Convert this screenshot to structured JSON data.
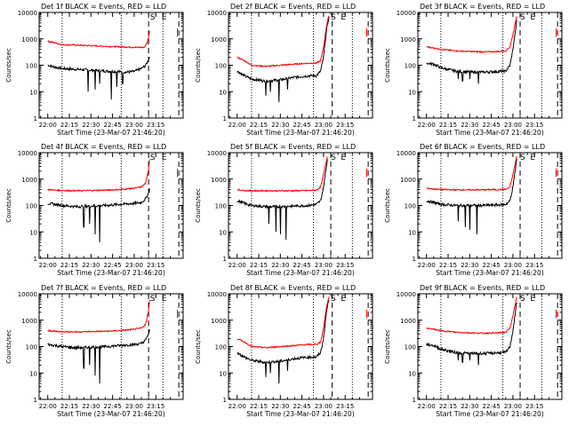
{
  "figure": {
    "xlabel": "Start Time (23-Mar-07 21:46:20)",
    "ylabel": "Counts/sec",
    "xticks": [
      "22:00",
      "22:15",
      "22:30",
      "22:45",
      "23:00",
      "23:15"
    ],
    "yticks": [
      "1",
      "10",
      "100",
      "1000",
      "10000"
    ],
    "marker_S": "S",
    "marker_E": "E",
    "colors": {
      "events": "#000000",
      "lld": "#ff0000",
      "axes": "#000000"
    }
  },
  "chart_data": [
    {
      "type": "line",
      "title": "Det 1f BLACK = Events, RED = LLD",
      "xlim_min": [
        -6,
        94
      ],
      "ylim_log10": [
        0,
        4
      ],
      "series": [
        {
          "name": "Events",
          "color": "#000000",
          "x_min": [
            0,
            5,
            10,
            20,
            30,
            40,
            55,
            60,
            65,
            68,
            70,
            71
          ],
          "y": [
            100,
            85,
            75,
            70,
            65,
            60,
            55,
            58,
            75,
            100,
            160,
            250
          ],
          "dips": [
            [
              28,
              10
            ],
            [
              33,
              12
            ],
            [
              36,
              20
            ],
            [
              44,
              5
            ],
            [
              48,
              15
            ],
            [
              52,
              20
            ]
          ]
        },
        {
          "name": "LLD",
          "color": "#ff0000",
          "x_min": [
            0,
            5,
            10,
            20,
            30,
            40,
            50,
            60,
            65,
            67,
            69,
            70,
            71
          ],
          "y": [
            800,
            700,
            600,
            580,
            550,
            520,
            500,
            480,
            470,
            480,
            700,
            1200,
            2500
          ]
        }
      ],
      "vlines_dotted_min": [
        10,
        51,
        80
      ],
      "vlines_dashed_min": [
        70,
        91
      ],
      "S_at_min": 71,
      "E_at_min": 79
    },
    {
      "type": "line",
      "title": "Det 2f BLACK = Events, RED = LLD",
      "xlim_min": [
        -6,
        94
      ],
      "ylim_log10": [
        0,
        4
      ],
      "series": [
        {
          "name": "Events",
          "color": "#000000",
          "x_min": [
            0,
            5,
            10,
            20,
            30,
            40,
            50,
            55,
            58,
            60,
            62,
            64
          ],
          "y": [
            60,
            40,
            30,
            25,
            28,
            35,
            40,
            40,
            60,
            200,
            2000,
            8000
          ],
          "dips": [
            [
              20,
              7
            ],
            [
              23,
              10
            ],
            [
              29,
              4
            ],
            [
              35,
              12
            ]
          ]
        },
        {
          "name": "LLD",
          "color": "#ff0000",
          "x_min": [
            0,
            5,
            10,
            20,
            30,
            40,
            50,
            55,
            58,
            60,
            62,
            64
          ],
          "y": [
            200,
            150,
            100,
            90,
            100,
            110,
            120,
            120,
            150,
            500,
            3000,
            9000
          ]
        }
      ],
      "vlines_dotted_min": [
        10,
        53,
        80
      ],
      "vlines_dashed_min": [
        66,
        91
      ],
      "S_at_min": 65,
      "E_at_min": 72
    },
    {
      "type": "line",
      "title": "Det 3f BLACK = Events, RED = LLD",
      "xlim_min": [
        -6,
        94
      ],
      "ylim_log10": [
        0,
        4
      ],
      "series": [
        {
          "name": "Events",
          "color": "#000000",
          "x_min": [
            0,
            5,
            10,
            20,
            30,
            40,
            50,
            55,
            58,
            60,
            62,
            63
          ],
          "y": [
            120,
            110,
            80,
            60,
            55,
            55,
            58,
            60,
            100,
            400,
            2500,
            7000
          ],
          "dips": [
            [
              22,
              30
            ],
            [
              25,
              25
            ],
            [
              30,
              30
            ],
            [
              36,
              20
            ]
          ]
        },
        {
          "name": "LLD",
          "color": "#ff0000",
          "x_min": [
            0,
            5,
            10,
            20,
            30,
            40,
            50,
            55,
            58,
            60,
            62,
            63
          ],
          "y": [
            500,
            450,
            400,
            350,
            330,
            320,
            330,
            350,
            500,
            1500,
            5000,
            9000
          ]
        }
      ],
      "vlines_dotted_min": [
        10,
        53,
        80
      ],
      "vlines_dashed_min": [
        65,
        91
      ],
      "S_at_min": 65,
      "E_at_min": 72
    },
    {
      "type": "line",
      "title": "Det 4f BLACK = Events, RED = LLD",
      "xlim_min": [
        -6,
        94
      ],
      "ylim_log10": [
        0,
        4
      ],
      "series": [
        {
          "name": "Events",
          "color": "#000000",
          "x_min": [
            0,
            5,
            10,
            20,
            30,
            40,
            50,
            60,
            65,
            68,
            70,
            71
          ],
          "y": [
            120,
            110,
            100,
            90,
            95,
            100,
            110,
            120,
            130,
            180,
            300,
            500
          ],
          "dips": [
            [
              25,
              15
            ],
            [
              29,
              20
            ],
            [
              33,
              8
            ],
            [
              36,
              4
            ]
          ]
        },
        {
          "name": "LLD",
          "color": "#ff0000",
          "x_min": [
            0,
            5,
            10,
            20,
            30,
            40,
            50,
            60,
            65,
            68,
            70,
            71
          ],
          "y": [
            400,
            380,
            370,
            360,
            370,
            380,
            400,
            450,
            500,
            700,
            2500,
            8000
          ]
        }
      ],
      "vlines_dotted_min": [
        10,
        51,
        80
      ],
      "vlines_dashed_min": [
        70,
        91
      ],
      "S_at_min": 71,
      "E_at_min": 79
    },
    {
      "type": "line",
      "title": "Det 5f BLACK = Events, RED = LLD",
      "xlim_min": [
        -6,
        94
      ],
      "ylim_log10": [
        0,
        4
      ],
      "series": [
        {
          "name": "Events",
          "color": "#000000",
          "x_min": [
            0,
            5,
            10,
            20,
            30,
            40,
            50,
            55,
            58,
            60,
            62,
            63
          ],
          "y": [
            150,
            120,
            100,
            90,
            90,
            95,
            100,
            110,
            150,
            500,
            3000,
            8000
          ],
          "dips": [
            [
              22,
              20
            ],
            [
              27,
              10
            ],
            [
              30,
              8
            ],
            [
              34,
              5
            ]
          ]
        },
        {
          "name": "LLD",
          "color": "#ff0000",
          "x_min": [
            0,
            5,
            10,
            20,
            30,
            40,
            50,
            55,
            58,
            60,
            62,
            63
          ],
          "y": [
            400,
            370,
            360,
            360,
            360,
            360,
            370,
            380,
            500,
            1500,
            5000,
            9000
          ]
        }
      ],
      "vlines_dotted_min": [
        10,
        53,
        80
      ],
      "vlines_dashed_min": [
        65,
        91
      ],
      "S_at_min": 65,
      "E_at_min": 72
    },
    {
      "type": "line",
      "title": "Det 6f BLACK = Events, RED = LLD",
      "xlim_min": [
        -6,
        94
      ],
      "ylim_log10": [
        0,
        4
      ],
      "series": [
        {
          "name": "Events",
          "color": "#000000",
          "x_min": [
            0,
            5,
            10,
            20,
            30,
            40,
            50,
            55,
            58,
            60,
            62,
            63
          ],
          "y": [
            150,
            130,
            110,
            100,
            100,
            100,
            105,
            110,
            150,
            500,
            3000,
            8000
          ],
          "dips": [
            [
              22,
              25
            ],
            [
              27,
              15
            ],
            [
              30,
              12
            ],
            [
              35,
              8
            ]
          ]
        },
        {
          "name": "LLD",
          "color": "#ff0000",
          "x_min": [
            0,
            5,
            10,
            20,
            30,
            40,
            50,
            55,
            58,
            60,
            62,
            63
          ],
          "y": [
            450,
            420,
            400,
            390,
            390,
            390,
            400,
            410,
            500,
            1500,
            5000,
            9000
          ]
        }
      ],
      "vlines_dotted_min": [
        10,
        53,
        80
      ],
      "vlines_dashed_min": [
        65,
        91
      ],
      "S_at_min": 65,
      "E_at_min": 72
    },
    {
      "type": "line",
      "title": "Det 7f BLACK = Events, RED = LLD",
      "xlim_min": [
        -6,
        94
      ],
      "ylim_log10": [
        0,
        4
      ],
      "series": [
        {
          "name": "Events",
          "color": "#000000",
          "x_min": [
            0,
            5,
            10,
            20,
            30,
            40,
            50,
            60,
            65,
            68,
            70,
            71
          ],
          "y": [
            120,
            110,
            100,
            90,
            95,
            100,
            110,
            120,
            130,
            180,
            300,
            500
          ],
          "dips": [
            [
              25,
              15
            ],
            [
              29,
              20
            ],
            [
              33,
              8
            ],
            [
              36,
              4
            ]
          ]
        },
        {
          "name": "LLD",
          "color": "#ff0000",
          "x_min": [
            0,
            5,
            10,
            20,
            30,
            40,
            50,
            60,
            65,
            68,
            70,
            71
          ],
          "y": [
            400,
            380,
            370,
            360,
            370,
            380,
            400,
            450,
            500,
            700,
            2500,
            8000
          ]
        }
      ],
      "vlines_dotted_min": [
        10,
        51,
        80
      ],
      "vlines_dashed_min": [
        70,
        91
      ],
      "S_at_min": 71,
      "E_at_min": 79
    },
    {
      "type": "line",
      "title": "Det 8f BLACK = Events, RED = LLD",
      "xlim_min": [
        -6,
        94
      ],
      "ylim_log10": [
        0,
        4
      ],
      "series": [
        {
          "name": "Events",
          "color": "#000000",
          "x_min": [
            0,
            5,
            10,
            20,
            30,
            40,
            50,
            55,
            58,
            60,
            62,
            64
          ],
          "y": [
            60,
            40,
            30,
            25,
            28,
            35,
            40,
            40,
            60,
            200,
            2000,
            8000
          ],
          "dips": [
            [
              20,
              7
            ],
            [
              23,
              10
            ],
            [
              29,
              4
            ],
            [
              35,
              12
            ]
          ]
        },
        {
          "name": "LLD",
          "color": "#ff0000",
          "x_min": [
            0,
            5,
            10,
            20,
            30,
            40,
            50,
            55,
            58,
            60,
            62,
            64
          ],
          "y": [
            200,
            150,
            100,
            90,
            100,
            110,
            120,
            120,
            150,
            500,
            3000,
            9000
          ]
        }
      ],
      "vlines_dotted_min": [
        10,
        53,
        80
      ],
      "vlines_dashed_min": [
        66,
        91
      ],
      "S_at_min": 65,
      "E_at_min": 72
    },
    {
      "type": "line",
      "title": "Det 9f BLACK = Events, RED = LLD",
      "xlim_min": [
        -6,
        94
      ],
      "ylim_log10": [
        0,
        4
      ],
      "series": [
        {
          "name": "Events",
          "color": "#000000",
          "x_min": [
            0,
            5,
            10,
            20,
            30,
            40,
            50,
            55,
            58,
            60,
            62,
            63
          ],
          "y": [
            120,
            110,
            80,
            60,
            55,
            55,
            58,
            60,
            100,
            400,
            2500,
            7000
          ],
          "dips": [
            [
              22,
              30
            ],
            [
              25,
              25
            ],
            [
              30,
              30
            ],
            [
              36,
              20
            ]
          ]
        },
        {
          "name": "LLD",
          "color": "#ff0000",
          "x_min": [
            0,
            5,
            10,
            20,
            30,
            40,
            50,
            55,
            58,
            60,
            62,
            63
          ],
          "y": [
            500,
            450,
            400,
            350,
            330,
            320,
            330,
            350,
            500,
            1500,
            5000,
            9000
          ]
        }
      ],
      "vlines_dotted_min": [
        10,
        53,
        80
      ],
      "vlines_dashed_min": [
        65,
        91
      ],
      "S_at_min": 65,
      "E_at_min": 72
    }
  ]
}
